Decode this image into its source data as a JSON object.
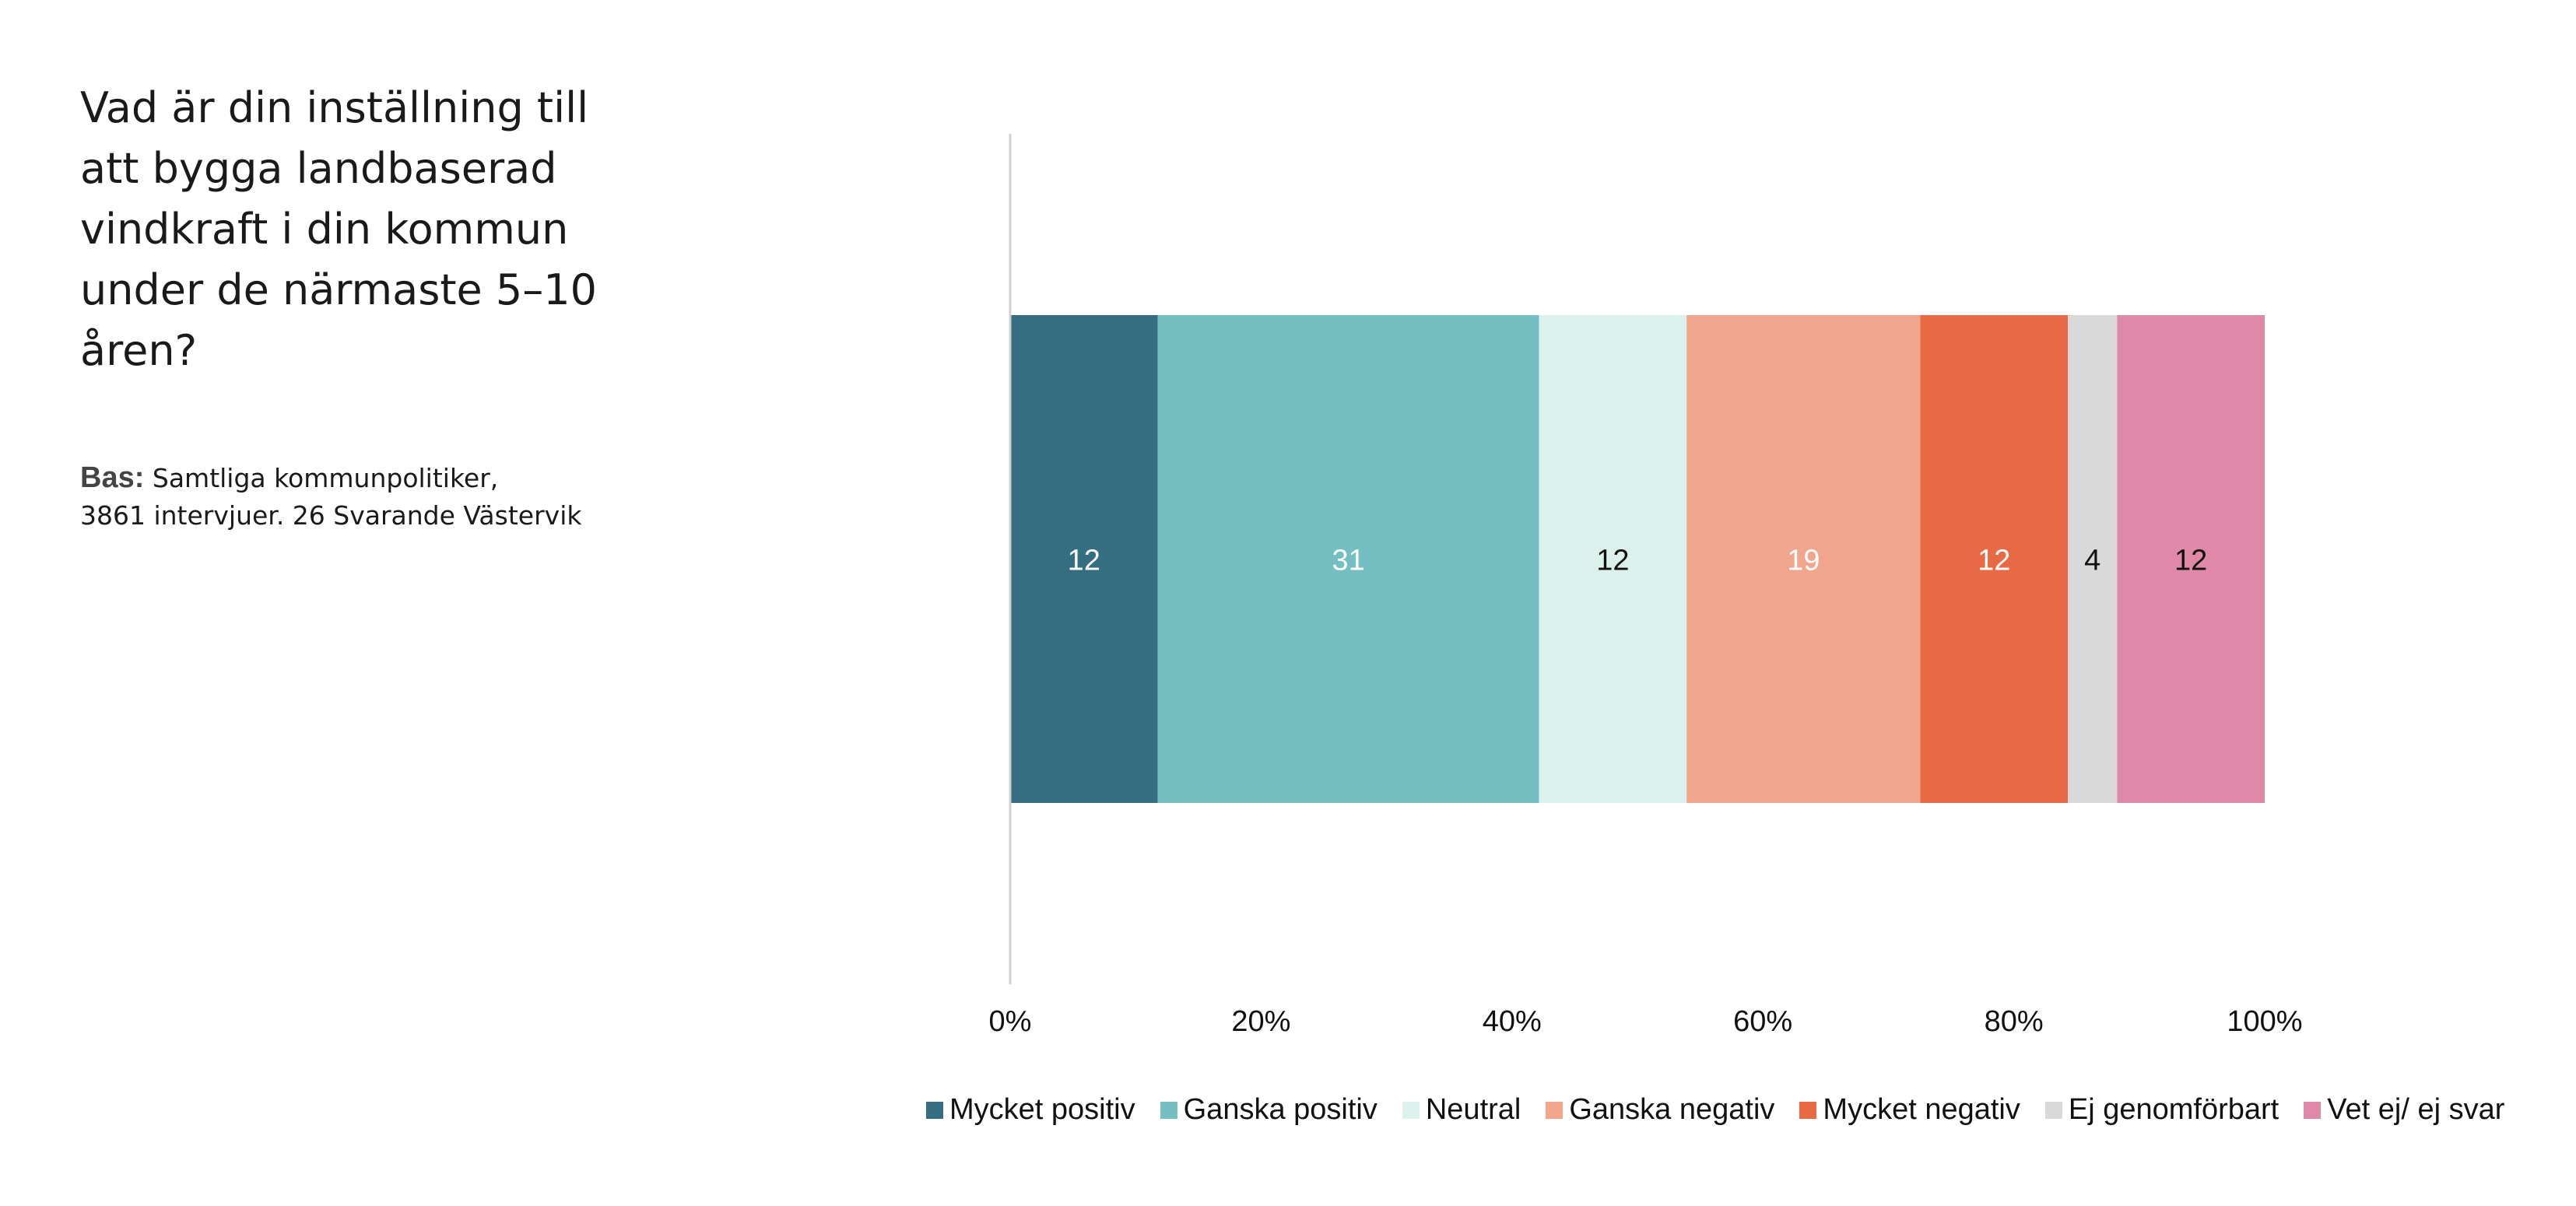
{
  "question": "Vad är din inställning till att bygga landbaserad vindkraft i din kommun under de närmaste 5–10 åren?",
  "base_label": "Bas:",
  "base_text_line1": "Samtliga kommunpolitiker,",
  "base_text_line2": "3861 intervjuer. 26 Svarande Västervik",
  "chart_data": {
    "type": "bar",
    "orientation": "horizontal",
    "stacked": true,
    "categories": [
      ""
    ],
    "xlim": [
      0,
      100
    ],
    "x_ticks": [
      "0%",
      "20%",
      "40%",
      "60%",
      "80%",
      "100%"
    ],
    "grid": false,
    "legend_position": "bottom",
    "series": [
      {
        "name": "Mycket positiv",
        "values": [
          12
        ],
        "color": "#346E80",
        "label_color": "#ffffff"
      },
      {
        "name": "Ganska positiv",
        "values": [
          31
        ],
        "color": "#74BFC2",
        "label_color": "#ffffff"
      },
      {
        "name": "Neutral",
        "values": [
          12
        ],
        "color": "#DBF1EC",
        "label_color": "#111111"
      },
      {
        "name": "Ganska negativ",
        "values": [
          19
        ],
        "color": "#F1A58C",
        "label_color": "#ffffff"
      },
      {
        "name": "Mycket negativ",
        "values": [
          12
        ],
        "color": "#E86A45",
        "label_color": "#ffffff"
      },
      {
        "name": "Ej genomförbart",
        "values": [
          4
        ],
        "color": "#D9D9D9",
        "label_color": "#111111"
      },
      {
        "name": "Vet ej/ ej svar",
        "values": [
          12
        ],
        "color": "#E088A8",
        "label_color": "#111111"
      }
    ]
  }
}
